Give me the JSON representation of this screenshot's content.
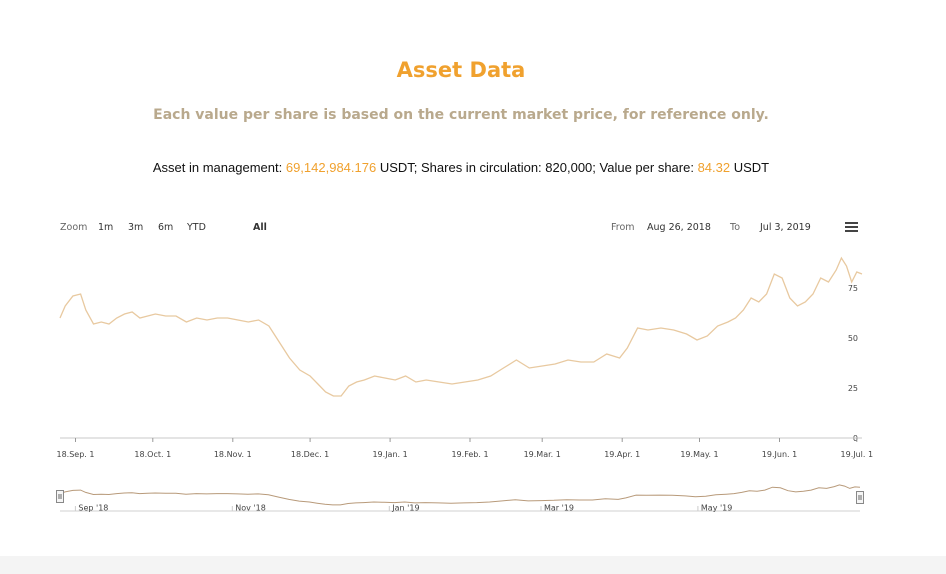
{
  "header": {
    "title": "Asset Data",
    "subtitle": "Each value per share is based on the current market price, for reference only."
  },
  "info": {
    "aum_label": "Asset in management: ",
    "aum_value": "69,142,984.176",
    "aum_unit": " USDT; Shares in circulation: ",
    "shares_value": "820,000",
    "vps_label": "; Value per share: ",
    "vps_value": "84.32",
    "vps_unit": " USDT"
  },
  "toolbar": {
    "zoom_label": "Zoom",
    "buttons": [
      "1m",
      "3m",
      "6m",
      "YTD",
      "All"
    ],
    "selected": "All",
    "from_label": "From",
    "from_value": "Aug 26, 2018",
    "to_label": "To",
    "to_value": "Jul 3, 2019",
    "menu_icon": "hamburger-menu-icon"
  },
  "colors": {
    "accent": "#f0a12e",
    "subtitle": "#b9a98d",
    "line": "#e8c9a0",
    "navigator_line": "#b89a7a"
  },
  "chart_data": {
    "type": "line",
    "title": "",
    "xlabel": "",
    "ylabel": "",
    "ylim": [
      0,
      100
    ],
    "yticks": [
      0,
      25,
      50,
      75
    ],
    "xlim": [
      "2018-08-26",
      "2019-07-03"
    ],
    "xticks": [
      {
        "date": "2018-09-01",
        "label": "18.Sep. 1"
      },
      {
        "date": "2018-10-01",
        "label": "18.Oct. 1"
      },
      {
        "date": "2018-11-01",
        "label": "18.Nov. 1"
      },
      {
        "date": "2018-12-01",
        "label": "18.Dec. 1"
      },
      {
        "date": "2019-01-01",
        "label": "19.Jan. 1"
      },
      {
        "date": "2019-02-01",
        "label": "19.Feb. 1"
      },
      {
        "date": "2019-03-01",
        "label": "19.Mar. 1"
      },
      {
        "date": "2019-04-01",
        "label": "19.Apr. 1"
      },
      {
        "date": "2019-05-01",
        "label": "19.May. 1"
      },
      {
        "date": "2019-06-01",
        "label": "19.Jun. 1"
      },
      {
        "date": "2019-07-01",
        "label": "19.Jul. 1"
      }
    ],
    "navigator_ticks": [
      {
        "date": "2018-09-01",
        "label": "Sep '18"
      },
      {
        "date": "2018-11-01",
        "label": "Nov '18"
      },
      {
        "date": "2019-01-01",
        "label": "Jan '19"
      },
      {
        "date": "2019-03-01",
        "label": "Mar '19"
      },
      {
        "date": "2019-05-01",
        "label": "May '19"
      }
    ],
    "series": [
      {
        "x": [
          "2018-08-26",
          "2018-08-28",
          "2018-08-31",
          "2018-09-03",
          "2018-09-05",
          "2018-09-08",
          "2018-09-11",
          "2018-09-14",
          "2018-09-17",
          "2018-09-20",
          "2018-09-23",
          "2018-09-26",
          "2018-09-29",
          "2018-10-02",
          "2018-10-06",
          "2018-10-10",
          "2018-10-14",
          "2018-10-18",
          "2018-10-22",
          "2018-10-26",
          "2018-10-30",
          "2018-11-03",
          "2018-11-07",
          "2018-11-11",
          "2018-11-15",
          "2018-11-19",
          "2018-11-23",
          "2018-11-27",
          "2018-12-01",
          "2018-12-04",
          "2018-12-07",
          "2018-12-10",
          "2018-12-13",
          "2018-12-16",
          "2018-12-19",
          "2018-12-22",
          "2018-12-26",
          "2018-12-30",
          "2019-01-03",
          "2019-01-07",
          "2019-01-11",
          "2019-01-15",
          "2019-01-20",
          "2019-01-25",
          "2019-01-30",
          "2019-02-04",
          "2019-02-09",
          "2019-02-14",
          "2019-02-19",
          "2019-02-24",
          "2019-03-01",
          "2019-03-06",
          "2019-03-11",
          "2019-03-16",
          "2019-03-21",
          "2019-03-26",
          "2019-03-31",
          "2019-04-03",
          "2019-04-07",
          "2019-04-11",
          "2019-04-16",
          "2019-04-21",
          "2019-04-26",
          "2019-04-30",
          "2019-05-04",
          "2019-05-08",
          "2019-05-12",
          "2019-05-15",
          "2019-05-18",
          "2019-05-21",
          "2019-05-24",
          "2019-05-27",
          "2019-05-30",
          "2019-06-02",
          "2019-06-05",
          "2019-06-08",
          "2019-06-11",
          "2019-06-14",
          "2019-06-17",
          "2019-06-20",
          "2019-06-23",
          "2019-06-25",
          "2019-06-27",
          "2019-06-29",
          "2019-07-01",
          "2019-07-03"
        ],
        "y": [
          60,
          66,
          71,
          72,
          64,
          57,
          58,
          57,
          60,
          62,
          63,
          60,
          61,
          62,
          61,
          61,
          58,
          60,
          59,
          60,
          60,
          59,
          58,
          59,
          56,
          48,
          40,
          34,
          31,
          27,
          23,
          21,
          21,
          26,
          28,
          29,
          31,
          30,
          29,
          31,
          28,
          29,
          28,
          27,
          28,
          29,
          31,
          35,
          39,
          35,
          36,
          37,
          39,
          38,
          38,
          42,
          40,
          45,
          55,
          54,
          55,
          54,
          52,
          49,
          51,
          56,
          58,
          60,
          64,
          70,
          68,
          72,
          82,
          80,
          70,
          66,
          68,
          72,
          80,
          78,
          84,
          90,
          86,
          78,
          83,
          82
        ]
      }
    ]
  }
}
